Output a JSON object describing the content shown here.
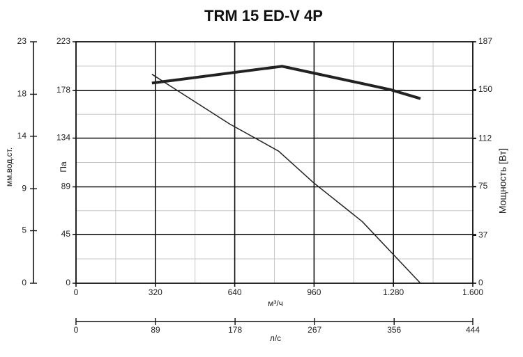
{
  "chart_data": {
    "type": "line",
    "title": "TRM 15 ED-V 4P",
    "xlabel": "м³/ч",
    "xlim": [
      0,
      1600
    ],
    "xticks": [
      0,
      320,
      640,
      960,
      {
        "value": 1280,
        "label": "1.280"
      },
      {
        "value": 1600,
        "label": "1.600"
      }
    ],
    "x2label": "л/с",
    "x2lim": [
      0,
      444
    ],
    "x2ticks": [
      0,
      89,
      178,
      267,
      356,
      444
    ],
    "ylabel": "Па",
    "ylim": [
      0,
      223
    ],
    "yticks": [
      0,
      45,
      89,
      134,
      178,
      223
    ],
    "y_mm_label": "мм.вод.ст.",
    "y_mm_lim": [
      0,
      23
    ],
    "y_mm_ticks": [
      0,
      5,
      9,
      14,
      18,
      23
    ],
    "y2label": "Мощность [Вт]",
    "y2lim": [
      0,
      187
    ],
    "y2ticks": [
      0,
      37,
      75,
      112,
      150,
      187
    ],
    "grid": true,
    "minor_grid": true,
    "series": [
      {
        "color": "#222222",
        "width": 1.5,
        "x": [
          306,
          620,
          817,
          957,
          1154,
          1389
        ],
        "values": [
          193,
          147,
          122,
          93,
          57,
          0
        ]
      },
      {
        "color": "#222222",
        "width": 4,
        "axis": "y2",
        "x": [
          306,
          831,
          1266,
          1389
        ],
        "values": [
          155,
          168,
          150,
          143
        ]
      }
    ]
  }
}
